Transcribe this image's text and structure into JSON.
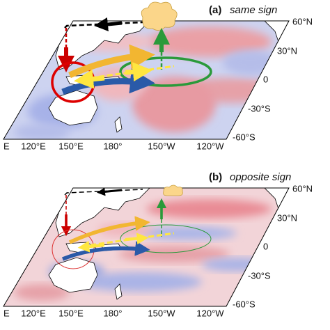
{
  "panels": [
    {
      "label": "(a)",
      "title": "same sign",
      "lat_labels": [
        "60°N",
        "30°N",
        "0",
        "-30°S",
        "-60°S"
      ],
      "lon_labels": [
        "E",
        "120°E",
        "150°E",
        "180°",
        "150°W",
        "120°W"
      ]
    },
    {
      "label": "(b)",
      "title": "opposite sign",
      "lat_labels": [
        "60°N",
        "30°N",
        "0",
        "-30°S",
        "-60°S"
      ],
      "lon_labels": [
        "E",
        "120°E",
        "150°E",
        "180°",
        "150°W",
        "120°W"
      ]
    }
  ]
}
